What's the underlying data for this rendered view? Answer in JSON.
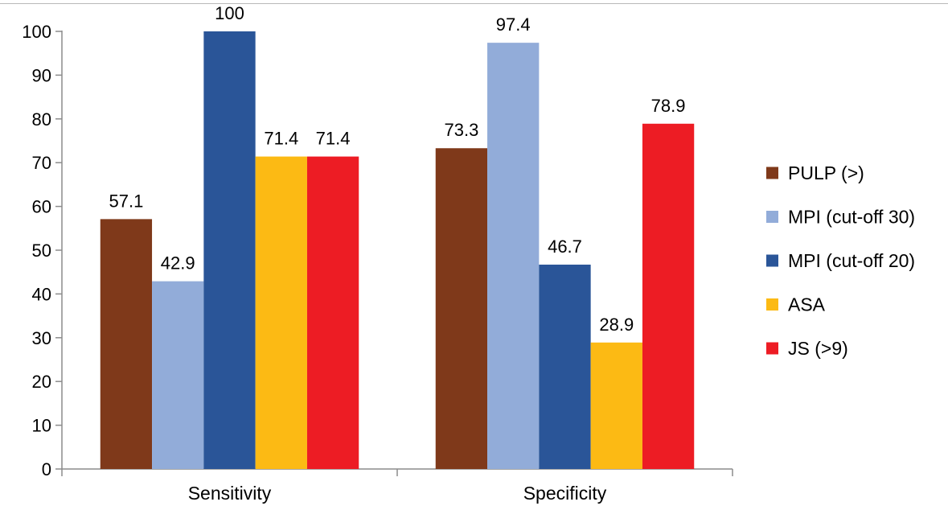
{
  "chart_data": {
    "type": "bar",
    "categories": [
      "Sensitivity",
      "Specificity"
    ],
    "series": [
      {
        "name": "PULP (>)",
        "values": [
          57.1,
          73.3
        ],
        "color": "#7f391a"
      },
      {
        "name": "MPI (cut-off 30)",
        "values": [
          42.9,
          97.4
        ],
        "color": "#92acd9"
      },
      {
        "name": "MPI (cut-off 20)",
        "values": [
          100,
          46.7
        ],
        "color": "#2a5598"
      },
      {
        "name": "ASA",
        "values": [
          71.4,
          28.9
        ],
        "color": "#fcba14"
      },
      {
        "name": "JS (>9)",
        "values": [
          71.4,
          78.9
        ],
        "color": "#ed1c24"
      }
    ],
    "data_labels": [
      [
        "57.1",
        "73.3"
      ],
      [
        "42.9",
        "97.4"
      ],
      [
        "100",
        "46.7"
      ],
      [
        "71.4",
        "28.9"
      ],
      [
        "71.4",
        "78.9"
      ]
    ],
    "y_ticks": [
      "0",
      "10",
      "20",
      "30",
      "40",
      "50",
      "60",
      "70",
      "80",
      "90",
      "100"
    ],
    "ylim": [
      0,
      100
    ],
    "title": "",
    "xlabel": "",
    "ylabel": "",
    "grid": false,
    "legend_position": "right"
  }
}
